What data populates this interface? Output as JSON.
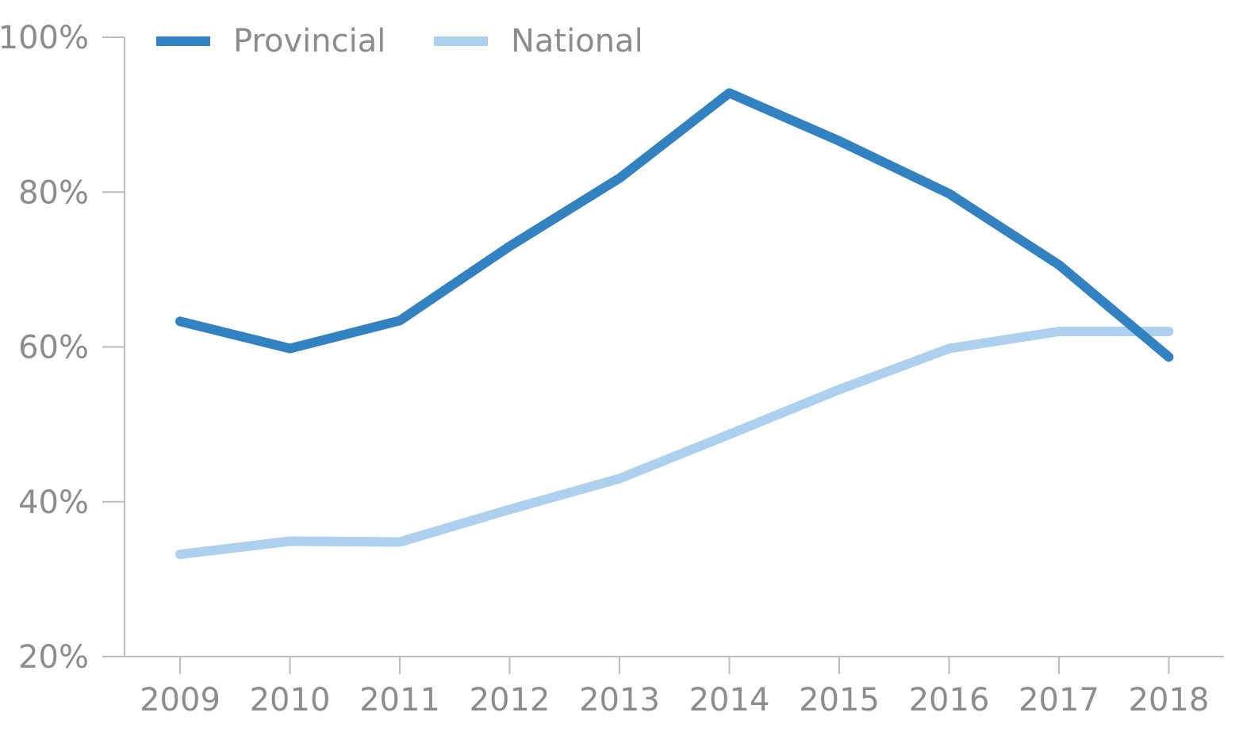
{
  "chart_data": {
    "type": "line",
    "title": "",
    "xlabel": "",
    "ylabel": "",
    "categories": [
      "2009",
      "2010",
      "2011",
      "2012",
      "2013",
      "2014",
      "2015",
      "2016",
      "2017",
      "2018"
    ],
    "y_ticks": [
      "20%",
      "40%",
      "60%",
      "80%",
      "100%"
    ],
    "ylim": [
      20,
      100
    ],
    "grid": false,
    "legend_position": "top-left",
    "series": [
      {
        "name": "Provincial",
        "color": "#3282c1",
        "values": [
          63.3,
          59.8,
          63.4,
          73.0,
          81.8,
          92.8,
          86.6,
          79.8,
          70.6,
          58.7
        ]
      },
      {
        "name": "National",
        "color": "#aed0ef",
        "values": [
          33.2,
          34.9,
          34.8,
          39.0,
          43.0,
          48.7,
          54.5,
          59.8,
          62.0,
          62.0
        ]
      }
    ]
  }
}
